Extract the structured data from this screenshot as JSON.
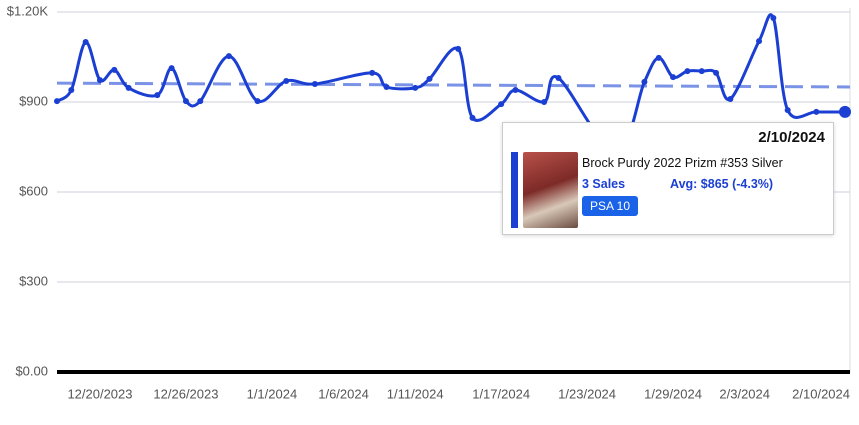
{
  "chart_data": {
    "type": "line",
    "x": [
      "12/17/2023",
      "12/18/2023",
      "12/19/2023",
      "12/20/2023",
      "12/21/2023",
      "12/22/2023",
      "12/24/2023",
      "12/25/2023",
      "12/26/2023",
      "12/27/2023",
      "12/29/2023",
      "12/31/2023",
      "1/2/2024",
      "1/4/2024",
      "1/8/2024",
      "1/9/2024",
      "1/11/2024",
      "1/12/2024",
      "1/14/2024",
      "1/15/2024",
      "1/17/2024",
      "1/18/2024",
      "1/20/2024",
      "1/21/2024",
      "1/25/2024",
      "1/27/2024",
      "1/28/2024",
      "1/29/2024",
      "1/30/2024",
      "1/31/2024",
      "2/1/2024",
      "2/2/2024",
      "2/4/2024",
      "2/5/2024",
      "2/6/2024",
      "2/8/2024",
      "2/10/2024"
    ],
    "values": [
      903,
      940,
      1100,
      973,
      1007,
      947,
      923,
      1013,
      903,
      903,
      1053,
      903,
      970,
      960,
      997,
      950,
      947,
      977,
      1077,
      847,
      893,
      940,
      900,
      980,
      730,
      967,
      1047,
      983,
      1003,
      1003,
      997,
      910,
      1103,
      1180,
      873,
      867,
      867
    ],
    "color": "#1b3fd2",
    "trend_line": {
      "values": [
        963,
        950
      ],
      "color": "#7b93e6"
    },
    "xlim": [
      "12/17/2023",
      "2/10/2024"
    ],
    "xticks": [
      "12/20/2023",
      "12/26/2023",
      "1/1/2024",
      "1/6/2024",
      "1/11/2024",
      "1/17/2024",
      "1/23/2024",
      "1/29/2024",
      "2/3/2024",
      "2/10/2024"
    ],
    "ylim": [
      0,
      1200
    ],
    "yticks": [
      {
        "value": 0,
        "label": "$0.00"
      },
      {
        "value": 300,
        "label": "$300"
      },
      {
        "value": 600,
        "label": "$600"
      },
      {
        "value": 900,
        "label": "$900"
      },
      {
        "value": 1200,
        "label": "$1.20K"
      }
    ],
    "grid": true
  },
  "tooltip": {
    "date": "2/10/2024",
    "title": "Brock Purdy 2022 Prizm #353 Silver",
    "sales": "3 Sales",
    "avg": "Avg: $865 (-4.3%)",
    "grade": "PSA 10"
  }
}
